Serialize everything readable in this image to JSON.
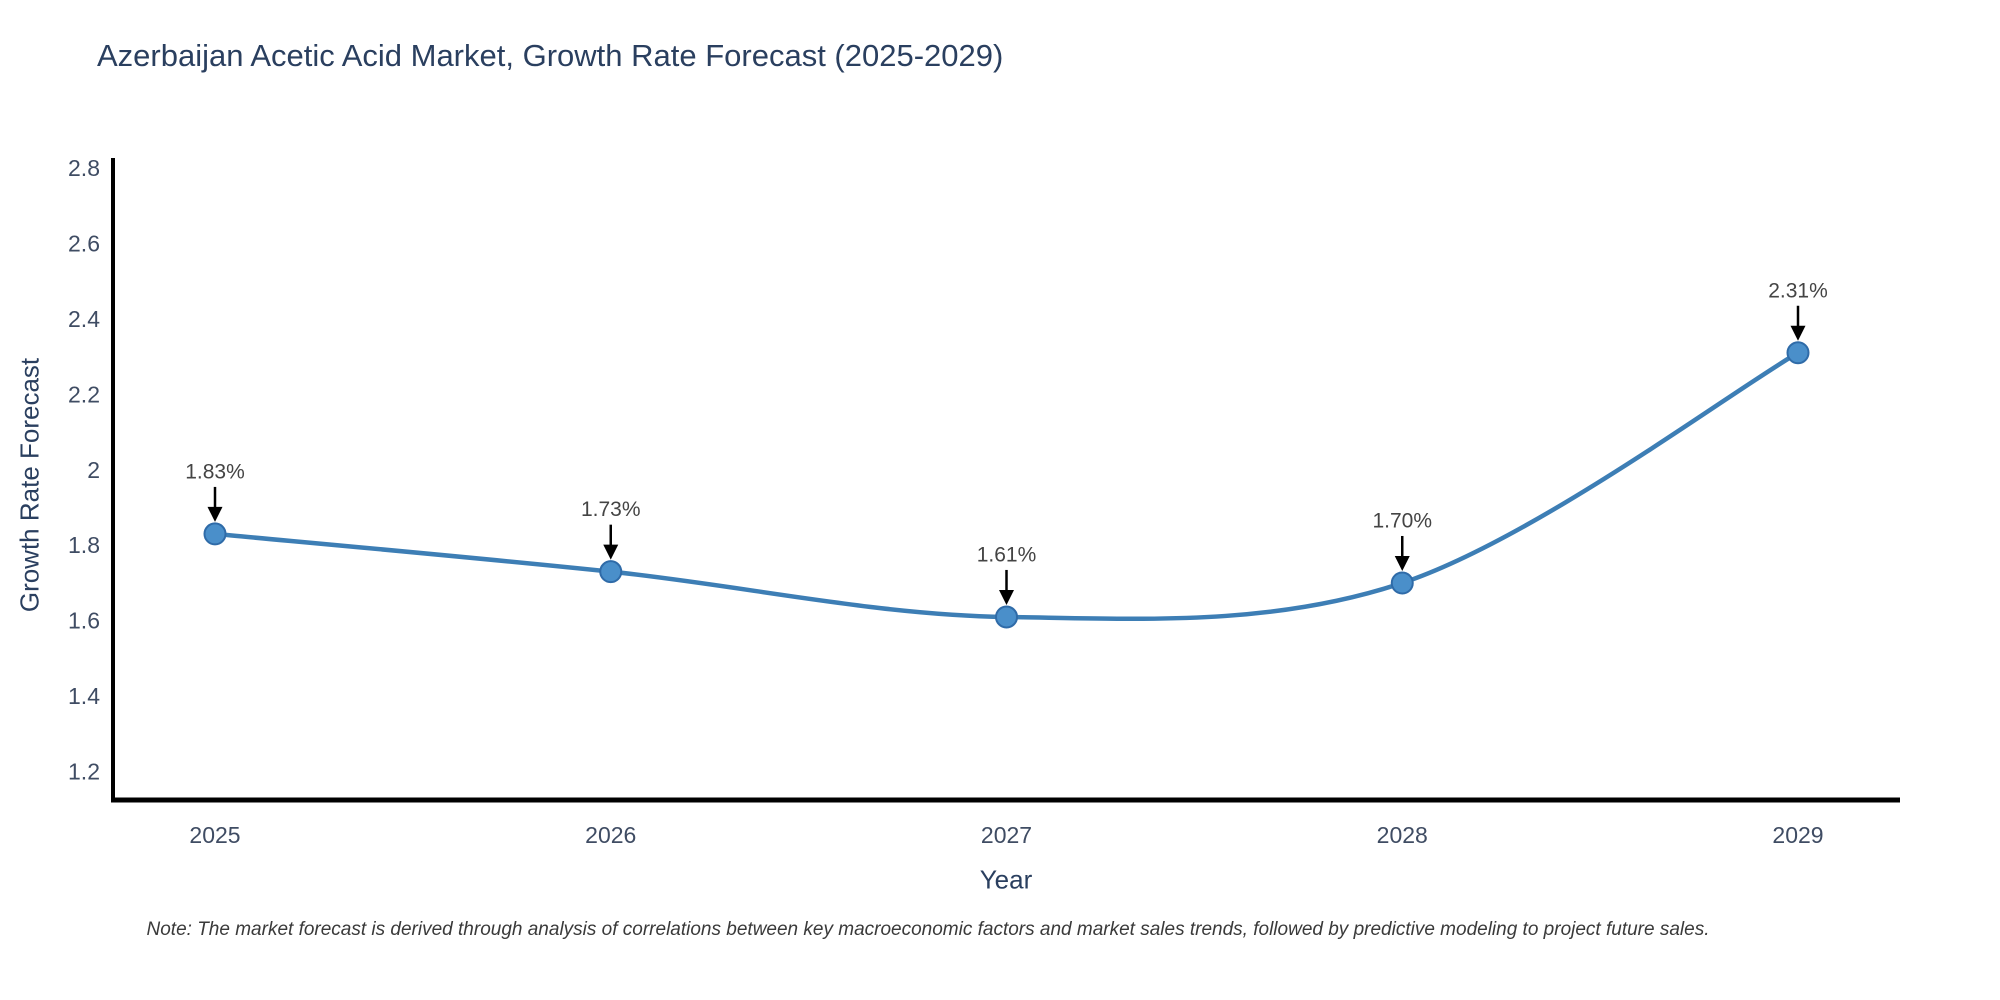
{
  "title": "Azerbaijan Acetic Acid Market, Growth Rate Forecast (2025-2029)",
  "note": "Note: The market forecast is derived through analysis of correlations between key macroeconomic factors and market sales trends, followed by predictive modeling to project future sales.",
  "chart_data": {
    "type": "line",
    "title": "Azerbaijan Acetic Acid Market, Growth Rate Forecast (2025-2029)",
    "xlabel": "Year",
    "ylabel": "Growth Rate Forecast",
    "categories": [
      "2025",
      "2026",
      "2027",
      "2028",
      "2029"
    ],
    "series": [
      {
        "name": "Growth Rate Forecast",
        "values": [
          1.83,
          1.73,
          1.61,
          1.7,
          2.31
        ],
        "point_labels": [
          "1.83%",
          "1.73%",
          "1.61%",
          "1.70%",
          "2.31%"
        ]
      }
    ],
    "line_shape": "spline",
    "markers": true,
    "annotations_arrows": true,
    "ytick_labels": [
      "1.2",
      "1.4",
      "1.6",
      "1.8",
      "2",
      "2.2",
      "2.4",
      "2.6",
      "2.8"
    ],
    "yticks": [
      1.2,
      1.4,
      1.6,
      1.8,
      2.0,
      2.2,
      2.4,
      2.6,
      2.8
    ],
    "ylim": [
      1.125,
      2.826
    ],
    "grid": false,
    "legend_position": "none",
    "colors": {
      "line": "#3d7eb5",
      "marker_fill": "#4a8fca",
      "marker_stroke": "#2f6ba8",
      "annotation_text": "#444444",
      "arrow": "#000000",
      "axis_line": "#000000",
      "tick_text": "#3f4c63",
      "title_text": "#2a3f5f"
    }
  }
}
